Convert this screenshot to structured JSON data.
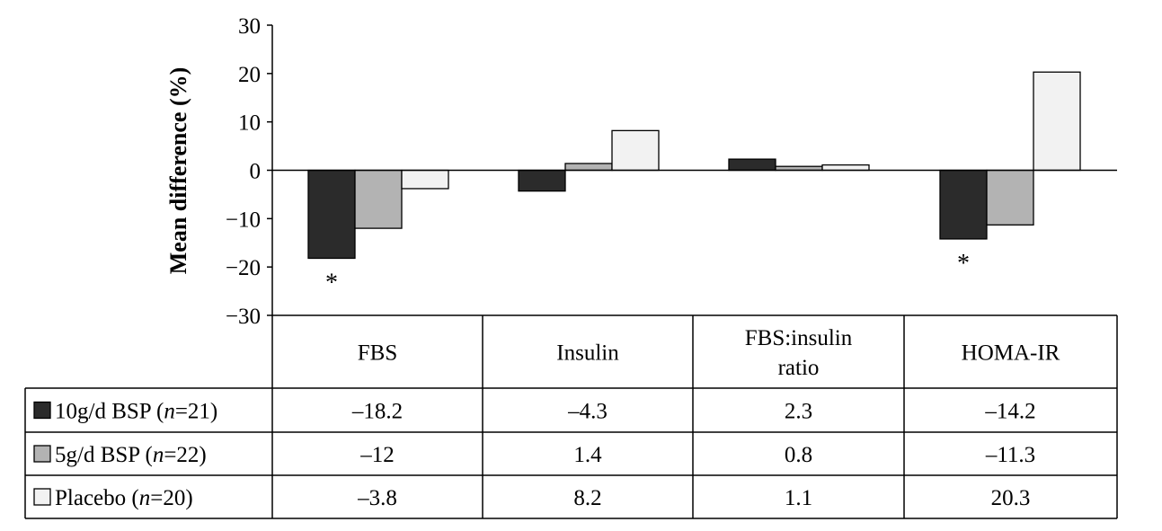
{
  "chart_data": {
    "type": "bar",
    "ylabel": "Mean difference (%)",
    "ylim": [
      -30,
      30
    ],
    "yticks": [
      30,
      20,
      10,
      0,
      -10,
      -20,
      -30
    ],
    "ytick_labels": [
      "30",
      "20",
      "10",
      "0",
      "−10",
      "−20",
      "−30"
    ],
    "categories": [
      "FBS",
      "Insulin",
      "FBS:insulin ratio",
      "HOMA-IR"
    ],
    "category_lines": [
      [
        "FBS"
      ],
      [
        "Insulin"
      ],
      [
        "FBS:insulin",
        "ratio"
      ],
      [
        "HOMA-IR"
      ]
    ],
    "series": [
      {
        "legend_parts": [
          "10g/d BSP (",
          "n",
          "=21)"
        ],
        "color": "#2b2b2b",
        "values": [
          -18.2,
          -4.3,
          2.3,
          -14.2
        ],
        "value_labels": [
          "–18.2",
          "–4.3",
          "2.3",
          "–14.2"
        ]
      },
      {
        "legend_parts": [
          "5g/d BSP (",
          "n",
          "=22)"
        ],
        "color": "#b3b3b3",
        "values": [
          -12,
          1.4,
          0.8,
          -11.3
        ],
        "value_labels": [
          "–12",
          "1.4",
          "0.8",
          "–11.3"
        ]
      },
      {
        "legend_parts": [
          "Placebo (",
          "n",
          "=20)"
        ],
        "color": "#f2f2f2",
        "values": [
          -3.8,
          8.2,
          1.1,
          20.3
        ],
        "value_labels": [
          "–3.8",
          "8.2",
          "1.1",
          "20.3"
        ]
      }
    ],
    "annotations": [
      {
        "text": "*",
        "series": 0,
        "category": 0
      },
      {
        "text": "*",
        "series": 0,
        "category": 3
      }
    ],
    "grid": false,
    "legend": "table-rows-below"
  }
}
